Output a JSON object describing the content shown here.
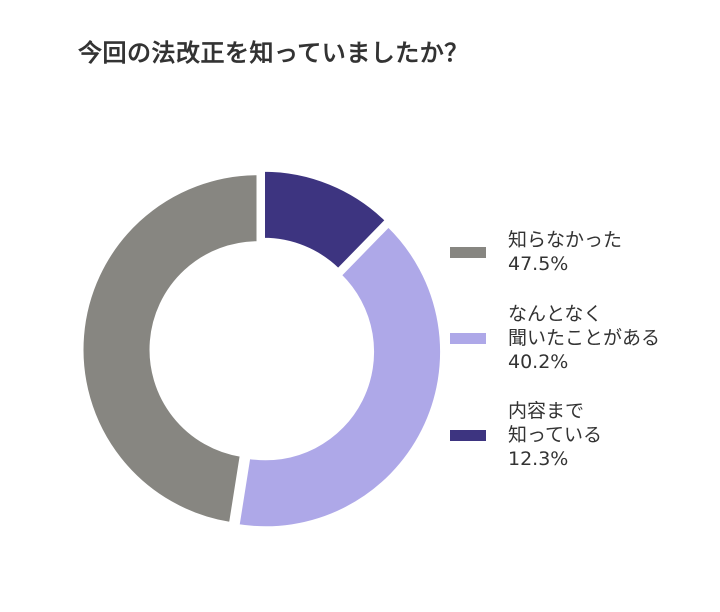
{
  "title": "今回の法改正を知っていましたか？",
  "legend": [
    {
      "lines": [
        "知らなかった"
      ],
      "value_label": "47.5%",
      "color": "#878681"
    },
    {
      "lines": [
        "なんとなく",
        "聞いたことがある"
      ],
      "value_label": "40.2%",
      "color": "#aea8e8"
    },
    {
      "lines": [
        "内容まで",
        "知っている"
      ],
      "value_label": "12.3%",
      "color": "#3d3480"
    }
  ],
  "chart_data": {
    "type": "pie",
    "subtype": "donut",
    "title": "今回の法改正を知っていましたか？",
    "categories": [
      "内容まで知っている",
      "なんとなく聞いたことがある",
      "知らなかった"
    ],
    "values": [
      12.3,
      40.2,
      47.5
    ],
    "unit": "%",
    "colors": [
      "#3d3480",
      "#aea8e8",
      "#878681"
    ],
    "start_angle": "12 o'clock",
    "direction": "clockwise",
    "legend_position": "right",
    "legend_order": [
      "知らなかった",
      "なんとなく聞いたことがある",
      "内容まで知っている"
    ]
  }
}
